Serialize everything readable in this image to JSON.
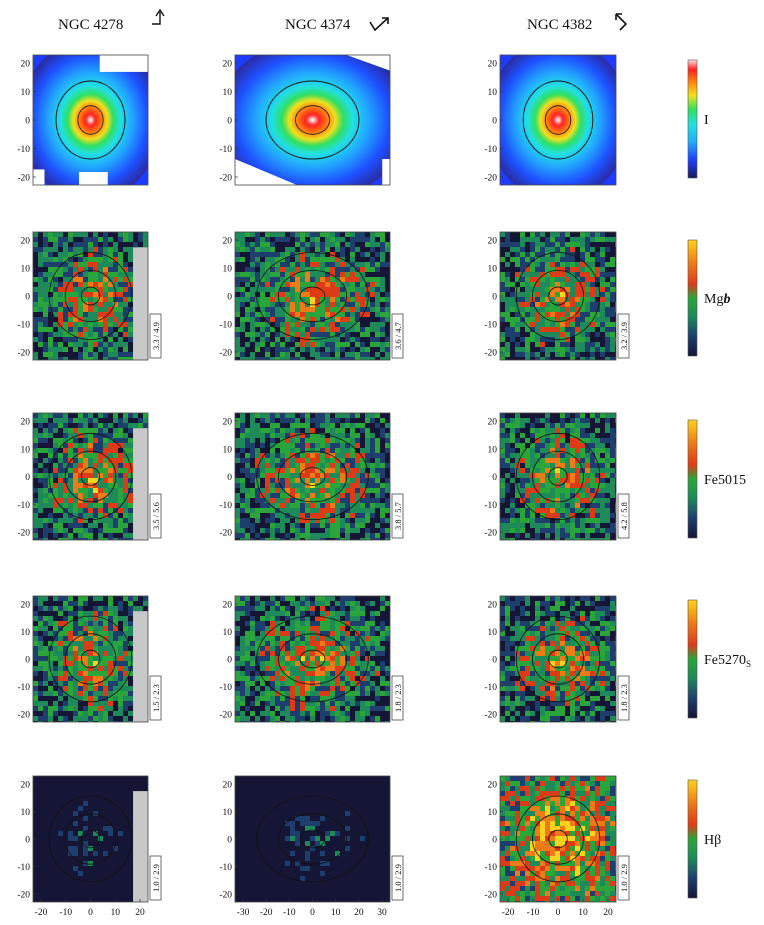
{
  "figure": {
    "galaxies": [
      {
        "name": "NGC 4278",
        "arrow": "north-east-arrow-icon"
      },
      {
        "name": "NGC 4374",
        "arrow": "north-east-arrow-icon"
      },
      {
        "name": "NGC 4382",
        "arrow": "north-east-arrow-icon"
      }
    ],
    "rows": [
      {
        "label": "I",
        "ranges": [
          "",
          "",
          ""
        ],
        "colormap": "intensity"
      },
      {
        "label": "Mg",
        "label_sub": "b",
        "ranges": [
          "3.3 / 4.9",
          "3.6 / 4.7",
          "3.2 / 3.9"
        ],
        "colormap": "index"
      },
      {
        "label": "Fe5015",
        "ranges": [
          "3.5 / 5.6",
          "3.8 / 5.7",
          "4.2 / 5.8"
        ],
        "colormap": "index"
      },
      {
        "label": "Fe5270",
        "label_sub": "S",
        "ranges": [
          "1.5 / 2.3",
          "1.8 / 2.3",
          "1.8 / 2.3"
        ],
        "colormap": "index"
      },
      {
        "label": "Hβ",
        "ranges": [
          "1.0 / 2.9",
          "1.0 / 2.9",
          "1.0 / 2.9"
        ],
        "colormap": "index"
      }
    ],
    "yticks": [
      "20",
      "10",
      "0",
      "-10",
      "-20"
    ],
    "xticks_by_column": [
      [
        "-20",
        "-10",
        "0",
        "10",
        "20"
      ],
      [
        "-30",
        "-20",
        "-10",
        "0",
        "10",
        "20",
        "30"
      ],
      [
        "-20",
        "-10",
        "0",
        "10",
        "20"
      ]
    ],
    "colors": {
      "intensity_scale": [
        "#1a1a5a",
        "#1e3cff",
        "#22a8ff",
        "#22e0e0",
        "#30e060",
        "#f0e020",
        "#ff8010",
        "#ff2020",
        "#ffffff"
      ],
      "index_scale": [
        "#151535",
        "#1e3e6e",
        "#1e8a5a",
        "#2aa53a",
        "#dd3b18",
        "#ee7a18",
        "#ffd21e"
      ],
      "masked": "#c8c8c8"
    }
  }
}
